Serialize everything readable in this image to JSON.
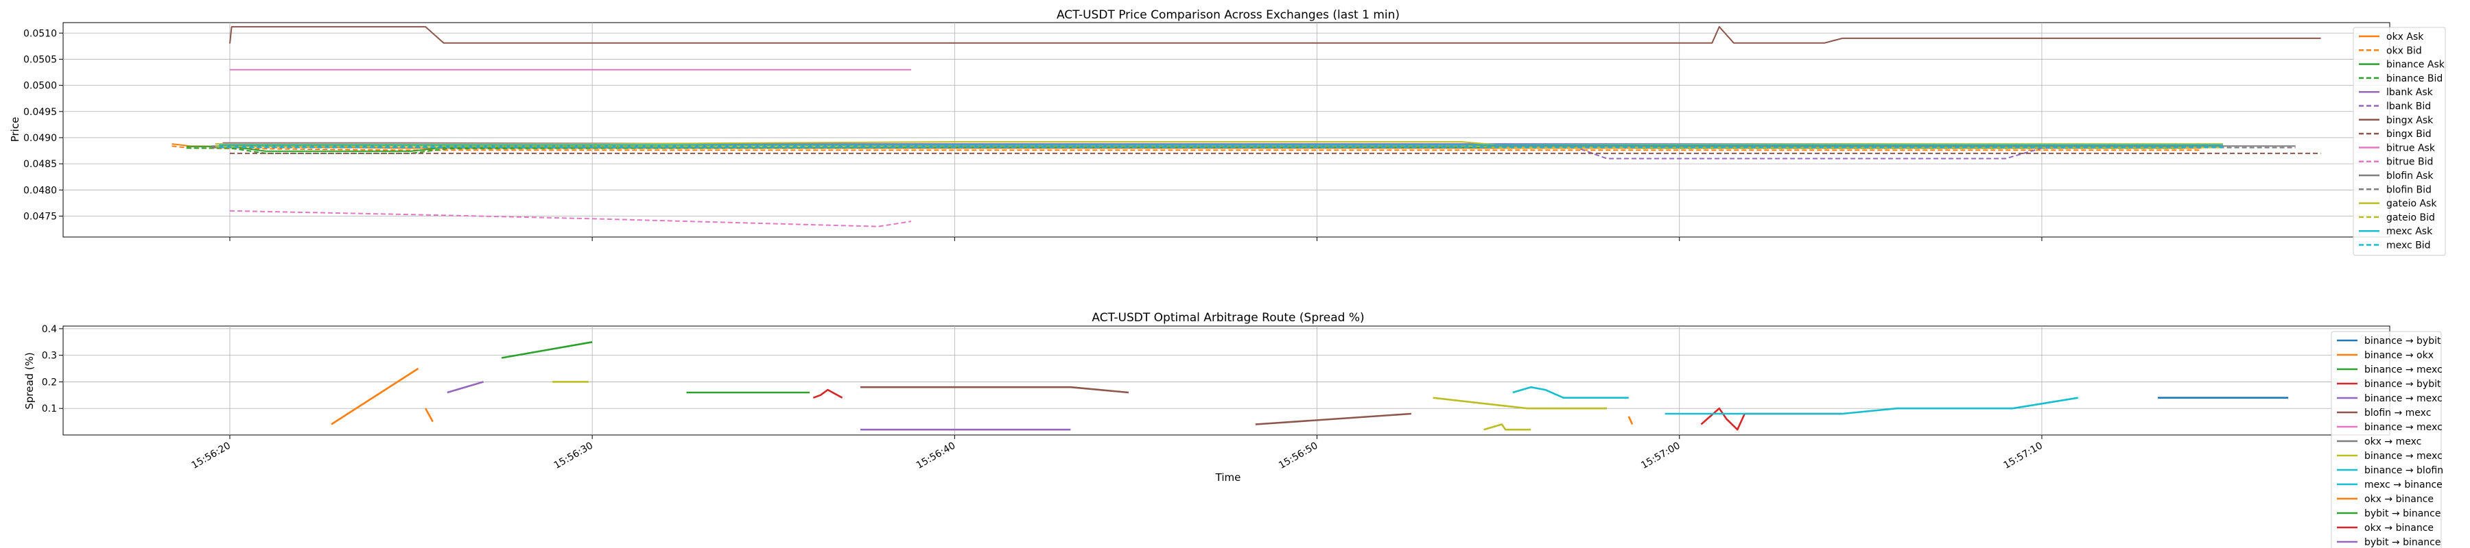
{
  "chart_data": [
    {
      "type": "line",
      "title": "ACT-USDT Price Comparison Across Exchanges (last 1 min)",
      "xlabel": "",
      "ylabel": "Price",
      "ylim": [
        0.0471,
        0.0512
      ],
      "yticks": [
        0.0475,
        0.048,
        0.0485,
        0.049,
        0.0495,
        0.05,
        0.0505,
        0.051
      ],
      "ytick_labels": [
        "0.0475",
        "0.0480",
        "0.0485",
        "0.0490",
        "0.0495",
        "0.0500",
        "0.0505",
        "0.0510"
      ],
      "grid": true,
      "legend_position": "top-right",
      "series": [
        {
          "name": "okx Ask",
          "color": "#ff7f0e",
          "dash": false,
          "x": [
            -1.6,
            -1.1,
            4.9,
            15,
            30,
            45,
            54.4
          ],
          "y": [
            0.04888,
            0.04884,
            0.0488,
            0.0488,
            0.0488,
            0.0488,
            0.0488
          ]
        },
        {
          "name": "okx Bid",
          "color": "#ff7f0e",
          "dash": true,
          "x": [
            -1.6,
            -1.1,
            4.9,
            15,
            30,
            45,
            54.4
          ],
          "y": [
            0.04884,
            0.0488,
            0.04876,
            0.04876,
            0.04876,
            0.04876,
            0.04876
          ]
        },
        {
          "name": "binance Ask",
          "color": "#2ca02c",
          "dash": false,
          "x": [
            -1.2,
            0,
            1,
            5,
            6,
            20,
            38.5,
            39,
            43,
            53.9
          ],
          "y": [
            0.04883,
            0.04883,
            0.04874,
            0.04874,
            0.04882,
            0.04885,
            0.04885,
            0.04884,
            0.04884,
            0.04884
          ]
        },
        {
          "name": "binance Bid",
          "color": "#2ca02c",
          "dash": true,
          "x": [
            -1.2,
            0,
            1,
            5,
            6,
            20,
            38.5,
            39,
            43,
            53.9
          ],
          "y": [
            0.0488,
            0.0488,
            0.0487,
            0.0487,
            0.04879,
            0.04881,
            0.04881,
            0.0488,
            0.0488,
            0.0488
          ]
        },
        {
          "name": "lbank Ask",
          "color": "#9467bd",
          "dash": false,
          "x": [
            -0.2,
            5,
            15,
            30,
            45,
            54.5
          ],
          "y": [
            0.0489,
            0.0489,
            0.04888,
            0.04888,
            0.04888,
            0.04886
          ]
        },
        {
          "name": "lbank Bid",
          "color": "#9467bd",
          "dash": true,
          "x": [
            -0.2,
            15,
            37,
            38,
            45,
            49,
            50,
            54.5
          ],
          "y": [
            0.04885,
            0.04885,
            0.04885,
            0.0486,
            0.0486,
            0.0486,
            0.0488,
            0.04882
          ]
        },
        {
          "name": "bingx Ask",
          "color": "#8c564b",
          "dash": false,
          "x": [
            0,
            0.05,
            5.4,
            5.9,
            40.9,
            41.1,
            41.5,
            44,
            44.5,
            57.7
          ],
          "y": [
            0.0508,
            0.05112,
            0.05112,
            0.05081,
            0.05081,
            0.05112,
            0.05081,
            0.05081,
            0.0509,
            0.0509
          ]
        },
        {
          "name": "bingx Bid",
          "color": "#8c564b",
          "dash": true,
          "x": [
            0,
            57.7
          ],
          "y": [
            0.0487,
            0.0487
          ]
        },
        {
          "name": "bitrue Ask",
          "color": "#e377c2",
          "dash": false,
          "x": [
            0,
            18.8
          ],
          "y": [
            0.0503,
            0.0503
          ]
        },
        {
          "name": "bitrue Bid",
          "color": "#e377c2",
          "dash": true,
          "x": [
            0,
            5,
            10,
            17.9,
            18.8
          ],
          "y": [
            0.0476,
            0.04753,
            0.04745,
            0.0473,
            0.0474
          ]
        },
        {
          "name": "blofin Ask",
          "color": "#7f7f7f",
          "dash": false,
          "x": [
            -0.5,
            15,
            30,
            45,
            57
          ],
          "y": [
            0.04884,
            0.04884,
            0.04884,
            0.04884,
            0.04884
          ]
        },
        {
          "name": "blofin Bid",
          "color": "#7f7f7f",
          "dash": true,
          "x": [
            -0.5,
            57
          ],
          "y": [
            0.04881,
            0.04881
          ]
        },
        {
          "name": "gateio Ask",
          "color": "#bcbd22",
          "dash": false,
          "x": [
            -0.4,
            10,
            20,
            34,
            35,
            45,
            55
          ],
          "y": [
            0.04888,
            0.04888,
            0.04892,
            0.04892,
            0.04886,
            0.04888,
            0.04888
          ]
        },
        {
          "name": "gateio Bid",
          "color": "#bcbd22",
          "dash": true,
          "x": [
            -0.4,
            20,
            34,
            35,
            55
          ],
          "y": [
            0.04883,
            0.04885,
            0.04885,
            0.04881,
            0.04881
          ]
        },
        {
          "name": "mexc Ask",
          "color": "#17becf",
          "dash": false,
          "x": [
            -0.3,
            15,
            30,
            45,
            55
          ],
          "y": [
            0.04886,
            0.04886,
            0.04886,
            0.04886,
            0.04886
          ]
        },
        {
          "name": "mexc Bid",
          "color": "#17becf",
          "dash": true,
          "x": [
            -0.3,
            55
          ],
          "y": [
            0.04882,
            0.04882
          ]
        }
      ]
    },
    {
      "type": "line",
      "title": "ACT-USDT Optimal Arbitrage Route (Spread %)",
      "xlabel": "Time",
      "ylabel": "Spread (%)",
      "ylim": [
        0,
        0.41
      ],
      "yticks": [
        0.1,
        0.2,
        0.3,
        0.4
      ],
      "ytick_labels": [
        "0.1",
        "0.2",
        "0.3",
        "0.4"
      ],
      "xlim": [
        -4.6,
        59.6
      ],
      "xticks": [
        0,
        10,
        20,
        30,
        40,
        50
      ],
      "xtick_labels": [
        "15:56:20",
        "15:56:30",
        "15:56:40",
        "15:56:50",
        "15:57:00",
        "15:57:10"
      ],
      "grid": true,
      "legend_position": "top-right",
      "series": [
        {
          "name": "binance → bybit",
          "color": "#1f77b4",
          "x": [
            53.2,
            56.8
          ],
          "y": [
            0.14,
            0.14
          ]
        },
        {
          "name": "binance → okx",
          "color": "#ff7f0e",
          "x": [
            2.8,
            5.2
          ],
          "y": [
            0.04,
            0.25
          ]
        },
        {
          "name": "binance → mexc",
          "color": "#2ca02c",
          "x": [
            7.5,
            10
          ],
          "y": [
            0.29,
            0.35
          ]
        },
        {
          "name": "binance → bybit",
          "color": "#d62728",
          "x": [
            40.6,
            41.1,
            41.3,
            41.6,
            41.8,
            44.5
          ],
          "y": [
            0.04,
            0.1,
            0.06,
            0.02,
            0.08,
            0.08
          ]
        },
        {
          "name": "binance → mexc",
          "color": "#9467bd",
          "x": [
            6,
            7
          ],
          "y": [
            0.16,
            0.2
          ]
        },
        {
          "name": "blofin → mexc",
          "color": "#8c564b",
          "x": [
            28.3,
            32.6
          ],
          "y": [
            0.04,
            0.08
          ]
        },
        {
          "name": "binance → mexc",
          "color": "#e377c2",
          "x": [],
          "y": []
        },
        {
          "name": "okx → mexc",
          "color": "#7f7f7f",
          "x": [],
          "y": []
        },
        {
          "name": "binance → mexc",
          "color": "#bcbd22",
          "x": [
            33.2,
            35.8,
            38
          ],
          "y": [
            0.14,
            0.1,
            0.1
          ]
        },
        {
          "name": "binance → blofin",
          "color": "#17becf",
          "x": [
            35.4,
            35.9,
            36.3,
            36.8,
            38.6
          ],
          "y": [
            0.16,
            0.18,
            0.17,
            0.14,
            0.14
          ]
        },
        {
          "name": "mexc → binance",
          "color": "#17becf",
          "x": [
            39.6,
            44.5,
            46,
            49.2,
            51
          ],
          "y": [
            0.08,
            0.08,
            0.1,
            0.1,
            0.14
          ]
        },
        {
          "name": "okx → binance",
          "color": "#ff7f0e",
          "x": [
            38.6,
            38.7
          ],
          "y": [
            0.07,
            0.04
          ]
        },
        {
          "name": "bybit → binance",
          "color": "#2ca02c",
          "x": [
            12.6,
            16
          ],
          "y": [
            0.16,
            0.16
          ]
        },
        {
          "name": "okx → binance",
          "color": "#d62728",
          "x": [
            16.1,
            16.3,
            16.5,
            16.9
          ],
          "y": [
            0.14,
            0.15,
            0.17,
            0.14
          ]
        },
        {
          "name": "bybit → binance",
          "color": "#9467bd",
          "x": [
            17.4,
            23.2
          ],
          "y": [
            0.02,
            0.02
          ]
        }
      ],
      "extra_segments": [
        {
          "color": "#8c564b",
          "x": [
            17.4,
            23.2,
            24.8
          ],
          "y": [
            0.18,
            0.18,
            0.16
          ]
        },
        {
          "color": "#bcbd22",
          "x": [
            8.9,
            9.9
          ],
          "y": [
            0.2,
            0.2
          ]
        },
        {
          "color": "#ff7f0e",
          "x": [
            5.4,
            5.6
          ],
          "y": [
            0.1,
            0.05
          ]
        },
        {
          "color": "#bcbd22",
          "x": [
            34.6,
            35.1,
            35.2,
            35.9
          ],
          "y": [
            0.02,
            0.04,
            0.02,
            0.02
          ]
        }
      ]
    }
  ]
}
